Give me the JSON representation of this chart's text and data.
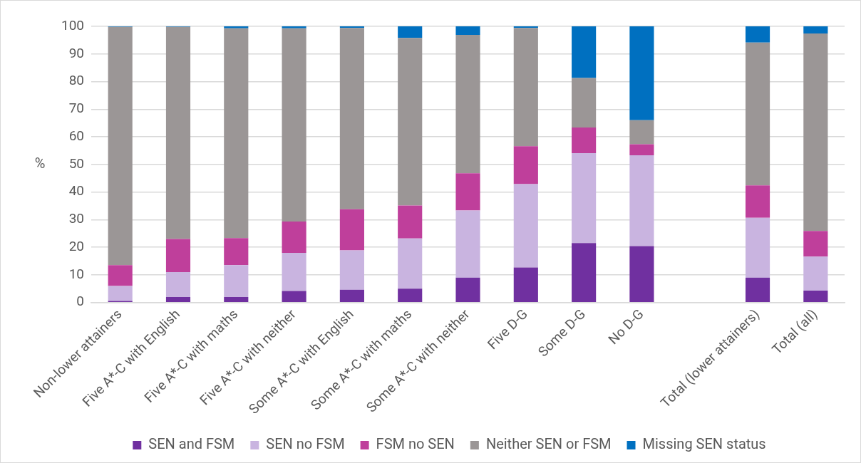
{
  "chart_data": {
    "type": "bar",
    "stacked": true,
    "ylabel": "%",
    "categories": [
      "Non-lower attainers",
      "Five A*-C with English",
      "Five A*-C with maths",
      "Five A*-C with neither",
      "Some A*-C with English",
      "Some A*-C with maths",
      "Some A*-C with neither",
      "Five D-G",
      "Some D-G",
      "No D-G",
      null,
      "Total (lower attainers)",
      "Total (all)"
    ],
    "series": [
      {
        "name": "SEN and FSM",
        "color": "#7030a0",
        "values": [
          0.6,
          2,
          2,
          4.2,
          4.6,
          5,
          9,
          12.7,
          21.5,
          20.4,
          null,
          9,
          4.3
        ]
      },
      {
        "name": "SEN no FSM",
        "color": "#c9b4e0",
        "values": [
          5.4,
          9,
          11.5,
          13.8,
          14.3,
          18.2,
          24.3,
          30.2,
          32.6,
          32.9,
          null,
          21.7,
          12.3
        ]
      },
      {
        "name": "FSM no SEN",
        "color": "#bf3f9b",
        "values": [
          7.5,
          12,
          9.8,
          11.3,
          14.9,
          11.9,
          13.5,
          13.7,
          9.3,
          4,
          null,
          11.7,
          9.3
        ]
      },
      {
        "name": "Neither SEN or FSM",
        "color": "#9b9696",
        "values": [
          86.3,
          76.8,
          76,
          70,
          65.6,
          60.7,
          50.1,
          42.8,
          17.9,
          8.7,
          null,
          51.7,
          71.5
        ]
      },
      {
        "name": "Missing SEN status",
        "color": "#0070c0",
        "values": [
          0.2,
          0.2,
          0.7,
          0.7,
          0.6,
          4.2,
          3.1,
          0.6,
          18.7,
          34,
          null,
          5.9,
          2.6
        ]
      }
    ],
    "ylim": [
      0,
      100
    ],
    "yticks": [
      0,
      10,
      20,
      30,
      40,
      50,
      60,
      70,
      80,
      90,
      100
    ],
    "grid": "y",
    "legend": "bottom"
  }
}
